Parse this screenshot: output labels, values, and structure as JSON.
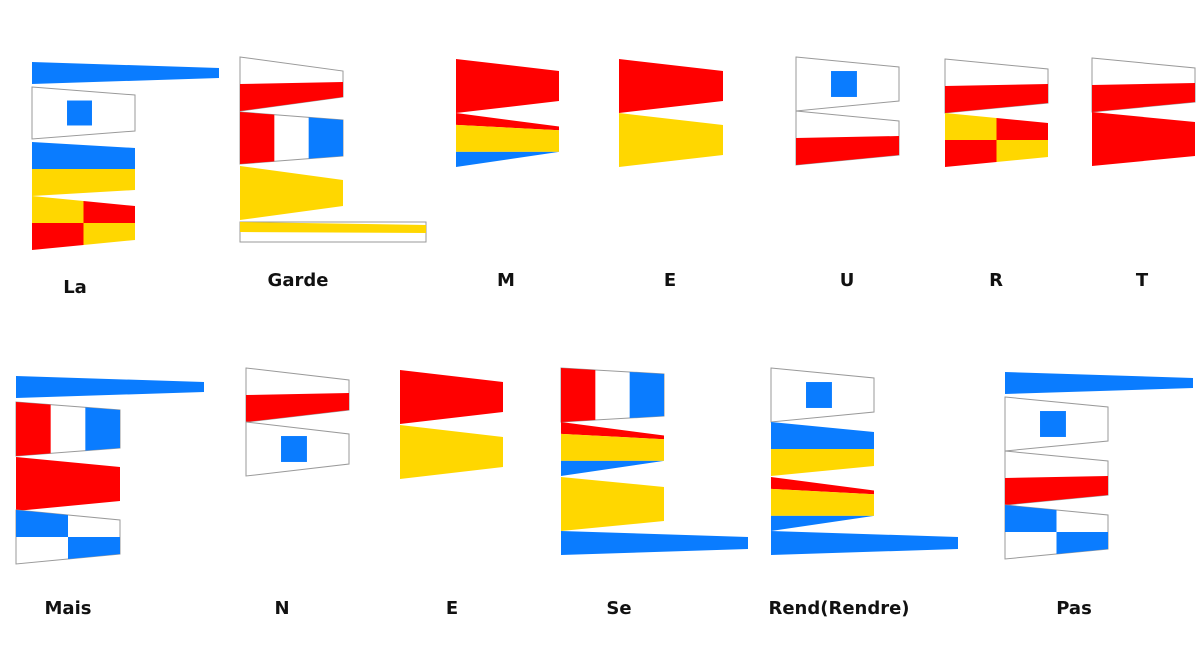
{
  "colors": {
    "red": "#ff0000",
    "yellow": "#ffd700",
    "blue": "#0a7cff",
    "white": "#ffffff",
    "outline": "#9a9a9a"
  },
  "words": [
    {
      "label": "La",
      "flags": [
        "pennant-blue",
        "pennant-white-blue-square",
        "pennant-blue-yellow",
        "pennant-yellow-red-checker"
      ]
    },
    {
      "label": "Garde",
      "flags": [
        "pennant-white-red",
        "pennant-red-white-blue",
        "pennant-yellow",
        "pennant-yellow-white-long"
      ]
    },
    {
      "label": "M",
      "flags": [
        "pennant-red",
        "pennant-red-yellow-blue"
      ]
    },
    {
      "label": "E",
      "flags": [
        "pennant-red",
        "pennant-yellow"
      ]
    },
    {
      "label": "U",
      "flags": [
        "pennant-white-blue-square",
        "pennant-white-red"
      ]
    },
    {
      "label": "R",
      "flags": [
        "pennant-white-red",
        "pennant-yellow-red-checker"
      ]
    },
    {
      "label": "T",
      "flags": [
        "pennant-white-red",
        "pennant-red"
      ]
    },
    {
      "label": "Mais",
      "flags": [
        "pennant-blue",
        "pennant-red-white-blue",
        "pennant-red",
        "pennant-blue-white-checker"
      ]
    },
    {
      "label": "N",
      "flags": [
        "pennant-white-red",
        "pennant-white-blue-square"
      ]
    },
    {
      "label": "E",
      "flags": [
        "pennant-red",
        "pennant-yellow"
      ]
    },
    {
      "label": "Se",
      "flags": [
        "pennant-red-white-blue",
        "pennant-red-yellow-blue",
        "pennant-yellow",
        "pennant-blue"
      ]
    },
    {
      "label": "Rend(Rendre)",
      "flags": [
        "pennant-white-blue-square",
        "pennant-blue-yellow",
        "pennant-red-yellow-blue",
        "pennant-blue"
      ]
    },
    {
      "label": "Pas",
      "flags": [
        "pennant-blue",
        "pennant-white-blue-square",
        "pennant-white-red",
        "pennant-blue-white-checker"
      ]
    }
  ]
}
